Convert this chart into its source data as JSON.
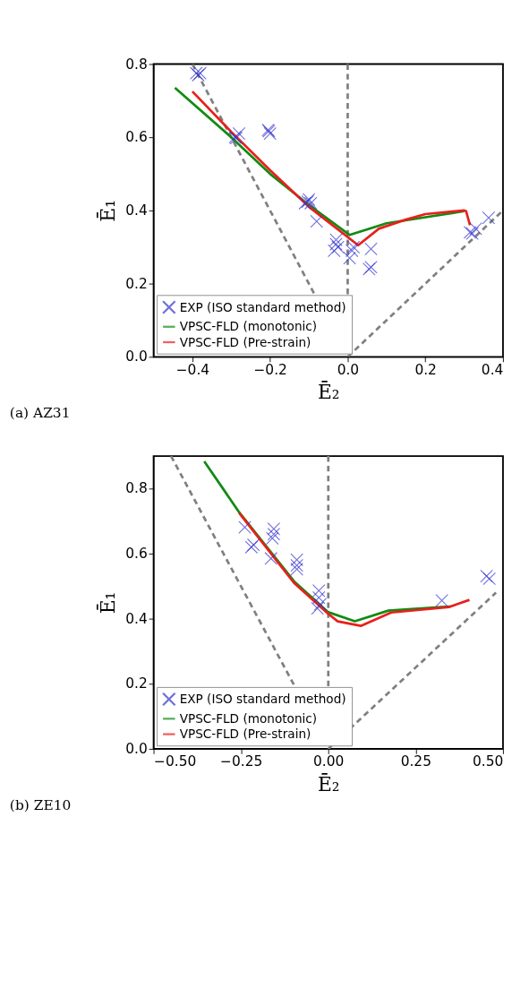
{
  "chart_data": [
    {
      "type": "line",
      "title": "(a) AZ31",
      "xlabel": "Ē₂",
      "ylabel": "Ē₁",
      "xlim": [
        -0.5,
        0.4
      ],
      "ylim": [
        0.0,
        0.8
      ],
      "xticks": [
        {
          "value": -0.4,
          "label": "−0.4"
        },
        {
          "value": -0.2,
          "label": "−0.2"
        },
        {
          "value": 0.0,
          "label": "0.0"
        },
        {
          "value": 0.2,
          "label": "0.2"
        },
        {
          "value": 0.4,
          "label": "0.4"
        }
      ],
      "yticks": [
        {
          "value": 0.0,
          "label": "0.0"
        },
        0.2,
        0.4,
        0.6,
        0.8
      ],
      "grid": false,
      "legend": "bottom left",
      "ref_lines": [
        {
          "axis": "x",
          "value": 0,
          "color": "#808080",
          "line_style": "dashed"
        }
      ],
      "series": [
        {
          "color": "#808080",
          "line_style": "dashed",
          "x": [
            -0.4,
            0.0
          ],
          "values": [
            0.8,
            0.0
          ]
        },
        {
          "color": "#808080",
          "line_style": "dashed",
          "x": [
            0.0,
            0.4
          ],
          "values": [
            0.0,
            0.4
          ]
        },
        {
          "name": "EXP (ISO standard method)",
          "type": "scatter",
          "marker": "cross",
          "color": "#3333cc",
          "x": [
            -0.39,
            -0.385,
            -0.38,
            -0.29,
            -0.287,
            -0.28,
            -0.205,
            -0.203,
            -0.2,
            -0.11,
            -0.103,
            -0.1,
            -0.095,
            -0.08,
            -0.035,
            -0.03,
            -0.03,
            -0.025,
            0.005,
            0.011,
            0.015,
            0.06,
            0.06,
            0.055,
            0.315,
            0.321,
            0.33,
            0.363
          ],
          "values": [
            0.775,
            0.77,
            0.775,
            0.6,
            0.598,
            0.61,
            0.62,
            0.617,
            0.61,
            0.42,
            0.424,
            0.43,
            0.42,
            0.37,
            0.29,
            0.308,
            0.32,
            0.3,
            0.27,
            0.29,
            0.3,
            0.295,
            0.245,
            0.24,
            0.34,
            0.337,
            0.35,
            0.38
          ]
        },
        {
          "name": "VPSC-FLD (monotonic)",
          "color": "#138a13",
          "x": [
            -0.445,
            -0.3,
            -0.2,
            -0.1,
            0.005,
            0.1,
            0.3
          ],
          "values": [
            0.735,
            0.6,
            0.5,
            0.415,
            0.333,
            0.365,
            0.398
          ]
        },
        {
          "name": "VPSC-FLD (Pre-strain)",
          "color": "#e8201c",
          "x": [
            -0.4,
            -0.3,
            -0.2,
            -0.1,
            0.027,
            0.08,
            0.15,
            0.2,
            0.3,
            0.305,
            0.315
          ],
          "values": [
            0.725,
            0.615,
            0.51,
            0.41,
            0.305,
            0.35,
            0.375,
            0.39,
            0.4,
            0.398,
            0.36
          ]
        }
      ]
    },
    {
      "type": "line",
      "title": "(b) ZE10",
      "xlabel": "Ē₂",
      "ylabel": "Ē₁",
      "xlim": [
        -0.5,
        0.5
      ],
      "ylim": [
        0.0,
        0.9
      ],
      "xticks": [
        {
          "value": -0.5,
          "label": "−0.50"
        },
        {
          "value": -0.25,
          "label": "−0.25"
        },
        {
          "value": 0.0,
          "label": "0.00"
        },
        {
          "value": 0.25,
          "label": "0.25"
        },
        {
          "value": 0.5,
          "label": "0.50"
        }
      ],
      "yticks": [
        {
          "value": 0.0,
          "label": "0.0"
        },
        0.2,
        0.4,
        0.6,
        0.8
      ],
      "grid": false,
      "legend": "bottom left",
      "ref_lines": [
        {
          "axis": "x",
          "value": 0,
          "color": "#808080",
          "line_style": "dashed"
        }
      ],
      "series": [
        {
          "color": "#808080",
          "line_style": "dashed",
          "x": [
            -0.45,
            0.0
          ],
          "values": [
            0.9,
            0.0
          ]
        },
        {
          "color": "#808080",
          "line_style": "dashed",
          "x": [
            0.0,
            0.48
          ],
          "values": [
            0.0,
            0.48
          ]
        },
        {
          "name": "EXP (ISO standard method)",
          "type": "scatter",
          "marker": "cross",
          "color": "#3333cc",
          "x": [
            -0.239,
            -0.214,
            -0.22,
            -0.156,
            -0.156,
            -0.16,
            -0.164,
            -0.09,
            -0.09,
            -0.09,
            -0.027,
            -0.027,
            -0.023,
            -0.031,
            0.325,
            0.453,
            0.461
          ],
          "values": [
            0.681,
            0.627,
            0.62,
            0.676,
            0.66,
            0.647,
            0.585,
            0.581,
            0.564,
            0.552,
            0.486,
            0.465,
            0.444,
            0.432,
            0.456,
            0.531,
            0.523
          ]
        },
        {
          "name": "VPSC-FLD (monotonic)",
          "color": "#138a13",
          "x": [
            -0.355,
            -0.255,
            -0.098,
            0.0,
            0.076,
            0.172,
            0.325,
            0.35
          ],
          "values": [
            0.884,
            0.727,
            0.515,
            0.42,
            0.392,
            0.425,
            0.436,
            0.437
          ]
        },
        {
          "name": "VPSC-FLD (Pre-strain)",
          "color": "#e8201c",
          "x": [
            -0.255,
            -0.098,
            0.0,
            0.027,
            0.093,
            0.18,
            0.346,
            0.404
          ],
          "values": [
            0.725,
            0.51,
            0.415,
            0.392,
            0.378,
            0.419,
            0.436,
            0.458
          ]
        }
      ]
    }
  ]
}
